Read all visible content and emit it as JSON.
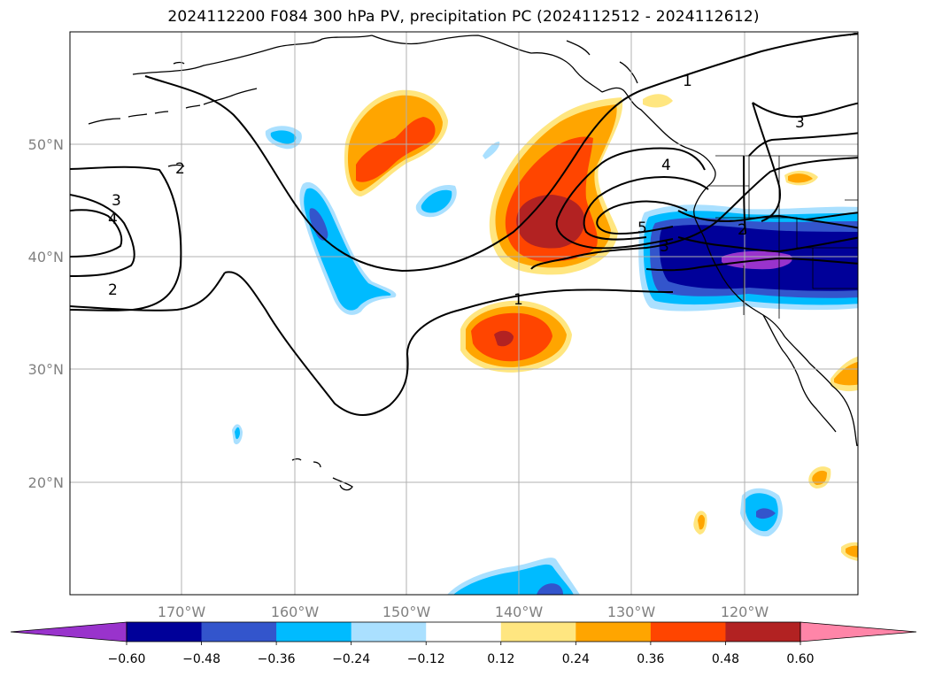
{
  "title": "2024112200 F084 300 hPa PV, precipitation PC (2024112512 - 2024112612)",
  "map": {
    "lat_labels": [
      "50°N",
      "40°N",
      "30°N",
      "20°N"
    ],
    "lon_labels": [
      "170°W",
      "160°W",
      "150°W",
      "140°W",
      "130°W",
      "120°W"
    ],
    "pv_contour_labels": [
      "1",
      "1",
      "2",
      "2",
      "2",
      "3",
      "3",
      "3",
      "4",
      "4",
      "5"
    ]
  },
  "colorbar": {
    "ticks": [
      "−0.60",
      "−0.48",
      "−0.36",
      "−0.24",
      "−0.12",
      "0.12",
      "0.24",
      "0.36",
      "0.48",
      "0.60"
    ],
    "colors": [
      "#9933cc",
      "#000099",
      "#3355cc",
      "#00bbff",
      "#aae0ff",
      "#ffffff",
      "#ffe680",
      "#ffa500",
      "#ff4500",
      "#b22222",
      "#ff85a8"
    ],
    "under_color": "#9933cc",
    "over_color": "#ff85a8"
  }
}
